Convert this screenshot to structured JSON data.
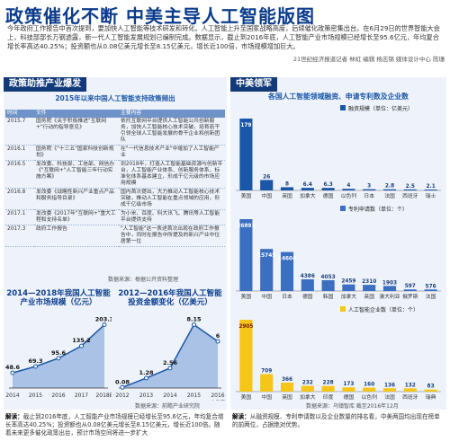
{
  "header": {
    "title": "政策催化不断 中美主导人工智能版图",
    "lead": "今年政府工作报告中首次提到，要加快人工智能等技术研发和转化。人工智能上升至国家战略高度，后续催化政策密集出台。在6月29日的世界智能大会上，科技部部长万钢透露，新一代人工智能发展规划已编制完成。数据显示，截止到2016年底，人工智能产业市场规模已经增长至95.6亿元，年均复合增长率高达40.25%；投资额也从0.08亿美元增长至8.15亿美元，增长近100倍，市场规模增加巨大。",
    "credit": "21世纪经济报道记者 林虹  编辑 杨志锦  媒体设计中心 陈珊"
  },
  "policy": {
    "section_title": "政策助推产业爆发",
    "table_title": "2015年以来中国人工智能支持政策频出",
    "columns": [
      "时间",
      "文件",
      "主要内容"
    ],
    "rows": [
      {
        "date": "2015.7",
        "doc": "国务院《关于积极推进\"互联网+\"行动的指导意见》",
        "content": "依托互联网平台提供人工智能公共创新服务，加快人工智能核心技术突破，培育若干引领全球人工智能发展的骨干企业和创新团队"
      },
      {
        "date": "2016.1",
        "doc": "国务院《\"十三五\"国家科技创新规划》",
        "content": "在\"一代信息技术产业\"中增加了人工智能产业"
      },
      {
        "date": "2016.5",
        "doc": "发改委、科技部、工信部、网信办《\"互联网+\"人工智能三年行动实施方案》",
        "content": "到2018年，打造人工智能基础资源与创新平台，人工智能产业体系、创新服务体系、标准化体系基本建立，形成千亿元级的市场应用规模"
      },
      {
        "date": "2016.8",
        "doc": "发改委《战略性新兴产业重点产品和服务指导目录》",
        "content": "国内首次提出，大力推动人工智能核心技术突破，推动人工智能在重点领域的应用，形成千亿级市场"
      },
      {
        "date": "2017.1",
        "doc": "发改委《2017年\"互联网+\"重大工程和支持名单》",
        "content": "为小米、百度、科大讯飞、腾讯等人工智能平台提供支持"
      },
      {
        "date": "2017.3",
        "doc": "政府工作报告",
        "content": "\"人工智能\"这一表述首次出现在政府工作报告中，同时在报告中所提及的新兴产业中位居第一位"
      }
    ],
    "source": "数据来源：根据公开资料整理"
  },
  "market_chart": {
    "title": "2014—2018年我国人工智能产业市场规模（亿元）",
    "chart_data": {
      "type": "line",
      "categories": [
        "2014",
        "2015",
        "2016",
        "2017",
        "2018E"
      ],
      "values": [
        48.6,
        69.3,
        95.6,
        135.2,
        203.3
      ]
    }
  },
  "invest_chart": {
    "title": "2012—2016年我国人工智能投资金额变化（亿美元）",
    "note": "上半年",
    "chart_data": {
      "type": "line",
      "categories": [
        "2012",
        "2013",
        "2014",
        "2015",
        "2016"
      ],
      "values": [
        0.08,
        1.28,
        2.56,
        8.15,
        6
      ]
    }
  },
  "bottom_source": "数据来源：前瞻产业研究院",
  "interp_left": "截止到2016年底，人工智能产业市场规模已经增长至95.6亿元，年均复合增长率高达40.25%；投资额也从0.08亿美元增长至8.15亿美元，增长近100倍。随着未来更多催化政策出台，预计市场空间将进一步扩大",
  "usa": {
    "section_title": "中美领军",
    "chart_title": "各国人工智能领域融资、申请专利数及企业数",
    "source": "数据来源：乌镇智库  截至2016年12月",
    "chart_data": [
      {
        "type": "bar",
        "legend": "融资规模（单位：亿美元）",
        "categories": [
          "美国",
          "中国",
          "英国",
          "加拿大",
          "德国",
          "以色列",
          "日本",
          "法国",
          "西班牙",
          "瑞士"
        ],
        "values": [
          179,
          26,
          8,
          6.4,
          6.3,
          4,
          3,
          2.8,
          2.5,
          2.1
        ]
      },
      {
        "type": "bar",
        "legend": "专利申请数（单位：个）",
        "categories": [
          "美国",
          "中国",
          "日本",
          "德国",
          "韩国",
          "加拿大",
          "英国",
          "澳大利亚",
          "俄罗斯",
          "法国"
        ],
        "values": [
          26891,
          15745,
          14604,
          4386,
          4053,
          2459,
          2310,
          1903,
          597,
          576
        ]
      },
      {
        "type": "bar",
        "legend": "人工智能企业数（单位：个）",
        "categories": [
          "美国",
          "中国",
          "英国",
          "加拿大",
          "印度",
          "德国",
          "以色列",
          "法国",
          "西班牙",
          "瑞典"
        ],
        "values": [
          2905,
          709,
          366,
          232,
          228,
          173,
          160,
          136,
          132,
          83
        ]
      }
    ]
  },
  "interp_right": "从融资规模、专利申请数以及企业数量的排名看，中美两国均出现在榜单的前两位，占据绝对优势。",
  "interp_label": "解读："
}
